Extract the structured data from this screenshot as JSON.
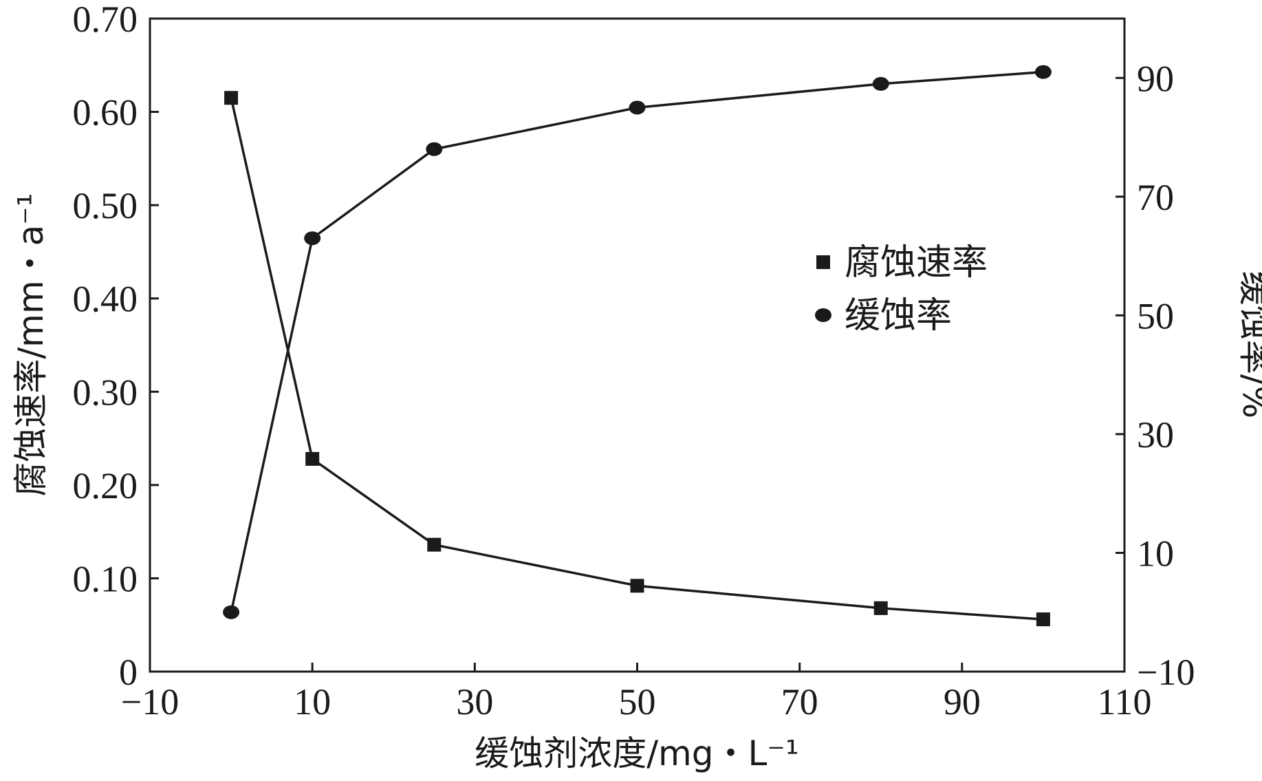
{
  "chart_data": {
    "type": "line",
    "xlabel": "缓蚀剂浓度/mg・L⁻¹",
    "ylabel": "腐蚀速率/mm・a⁻¹",
    "y2label": "缓蚀率/%",
    "xlim": [
      -10,
      110
    ],
    "ylim": [
      0,
      0.7
    ],
    "y2lim": [
      -10,
      100
    ],
    "x_ticks": [
      -10,
      10,
      30,
      50,
      70,
      90,
      110
    ],
    "x_tick_labels": [
      "−10",
      "10",
      "30",
      "50",
      "70",
      "90",
      "110"
    ],
    "y_ticks": [
      0,
      0.1,
      0.2,
      0.3,
      0.4,
      0.5,
      0.6,
      0.7
    ],
    "y_tick_labels": [
      "0",
      "0.10",
      "0.20",
      "0.30",
      "0.40",
      "0.50",
      "0.60",
      "0.70"
    ],
    "y2_ticks": [
      -10,
      10,
      30,
      50,
      70,
      90
    ],
    "y2_tick_labels": [
      "−10",
      "10",
      "30",
      "50",
      "70",
      "90"
    ],
    "legend_position": "center-right",
    "grid": false,
    "x": [
      0,
      10,
      25,
      50,
      80,
      100
    ],
    "series": [
      {
        "name": "腐蚀速率",
        "axis": "left",
        "marker": "square",
        "color": "#1a1a1a",
        "values": [
          0.615,
          0.228,
          0.136,
          0.092,
          0.068,
          0.056
        ]
      },
      {
        "name": "缓蚀率",
        "axis": "right",
        "marker": "circle",
        "color": "#1a1a1a",
        "values": [
          0,
          63,
          78,
          85,
          89,
          91
        ]
      }
    ]
  }
}
